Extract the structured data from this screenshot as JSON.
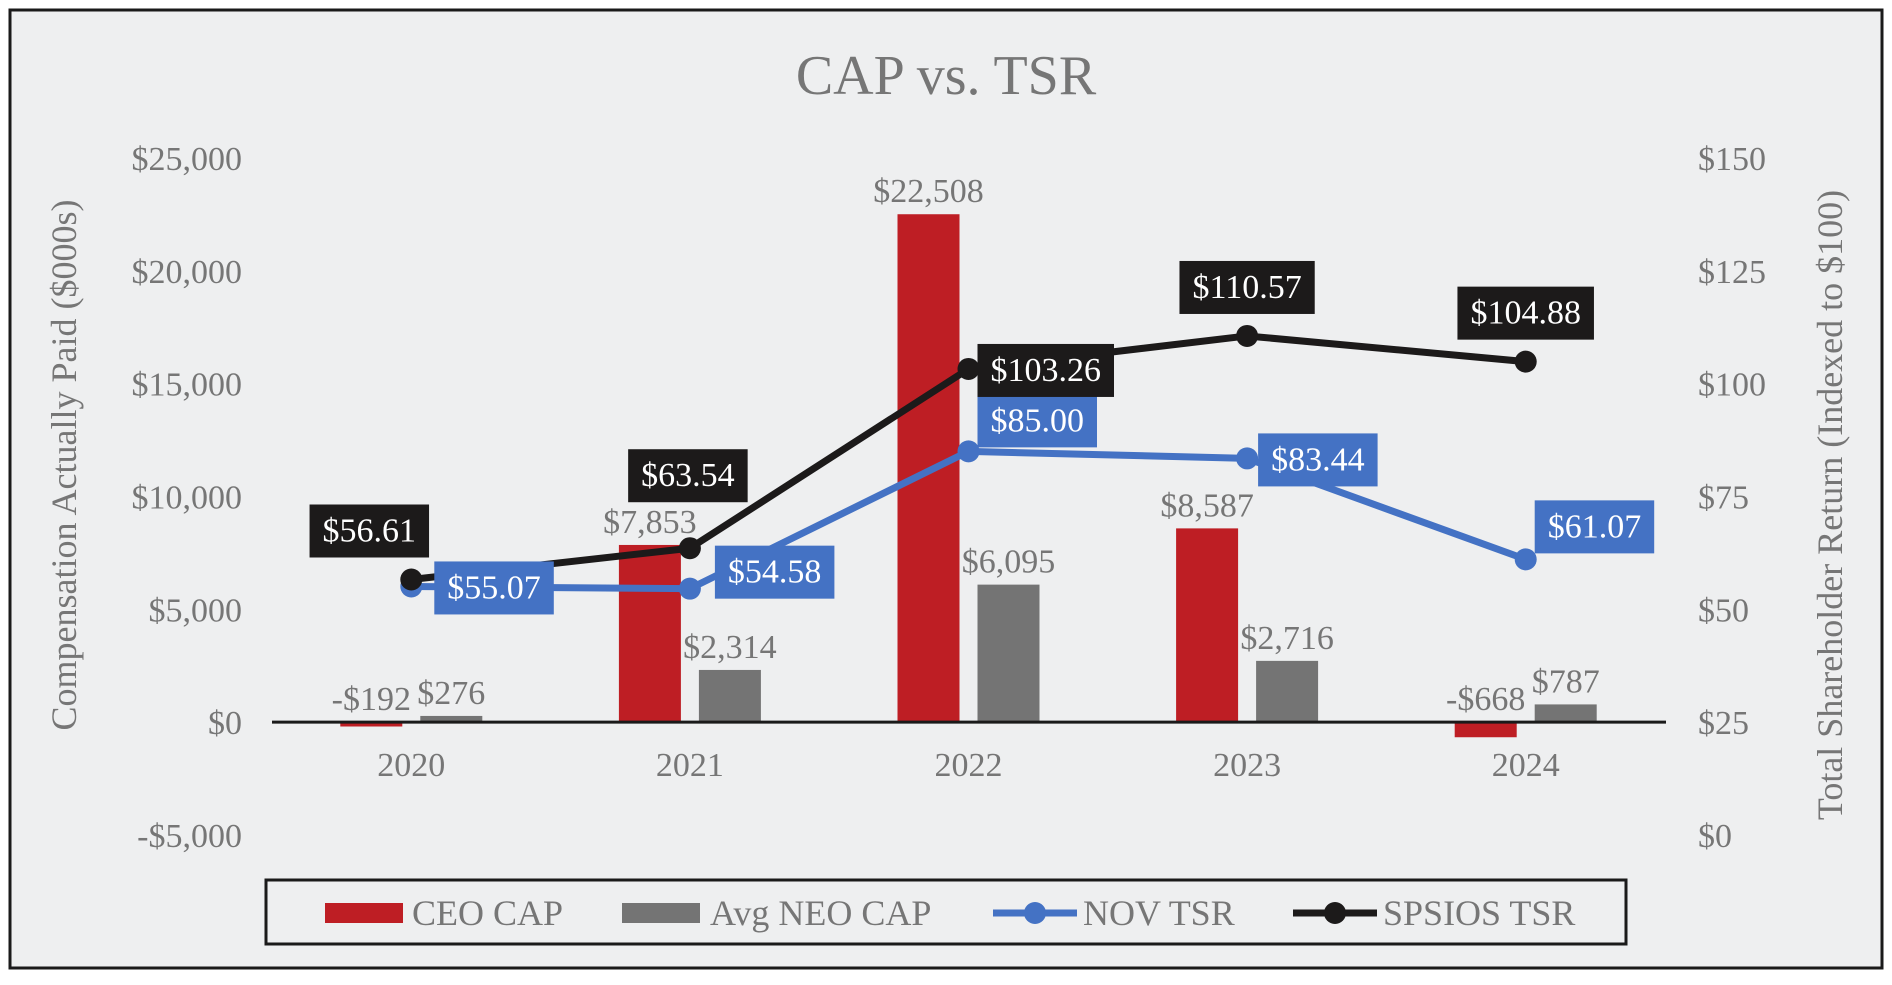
{
  "chart_data": {
    "type": "bar",
    "title": "CAP vs. TSR",
    "categories": [
      "2020",
      "2021",
      "2022",
      "2023",
      "2024"
    ],
    "y_left": {
      "label": "Compensation Actually Paid ($000s)",
      "range": [
        -5000,
        25000
      ],
      "ticks": [
        25000,
        20000,
        15000,
        10000,
        5000,
        0,
        -5000
      ],
      "tick_labels": [
        "$25,000",
        "$20,000",
        "$15,000",
        "$10,000",
        "$5,000",
        "$0",
        "-$5,000"
      ]
    },
    "y_right": {
      "label": "Total Shareholder Return (Indexed to $100)",
      "range": [
        0,
        150
      ],
      "ticks": [
        150,
        125,
        100,
        75,
        50,
        25,
        0
      ],
      "tick_labels": [
        "$150",
        "$125",
        "$100",
        "$75",
        "$50",
        "$25",
        "$0"
      ]
    },
    "bar_series": [
      {
        "name": "CEO CAP",
        "color": "#BE1E24",
        "values": [
          -192,
          7853,
          22508,
          8587,
          -668
        ],
        "labels": [
          "-$192",
          "$7,853",
          "$22,508",
          "$8,587",
          "-$668"
        ]
      },
      {
        "name": "Avg NEO CAP",
        "color": "#747474",
        "values": [
          276,
          2314,
          6095,
          2716,
          787
        ],
        "labels": [
          "$276",
          "$2,314",
          "$6,095",
          "$2,716",
          "$787"
        ]
      }
    ],
    "line_series": [
      {
        "name": "NOV TSR",
        "color": "#4472C4",
        "label_text_color": "#ffffff",
        "values": [
          55.07,
          54.58,
          85.0,
          83.44,
          61.07
        ],
        "labels": [
          "$55.07",
          "$54.58",
          "$85.00",
          "$83.44",
          "$61.07"
        ]
      },
      {
        "name": "SPSIOS TSR",
        "color": "#1C1A1A",
        "label_text_color": "#ffffff",
        "values": [
          56.61,
          63.54,
          103.26,
          110.57,
          104.88
        ],
        "labels": [
          "$56.61",
          "$63.54",
          "$103.26",
          "$110.57",
          "$104.88"
        ]
      }
    ],
    "legend": [
      "CEO CAP",
      "Avg NEO CAP",
      "NOV TSR",
      "SPSIOS TSR"
    ],
    "legend_position": "bottom",
    "grid": false,
    "colors": {
      "background": "#EEEFF0",
      "border": "#1a1a1a",
      "text": "#767676",
      "baseline": "#1a1a1a"
    }
  }
}
